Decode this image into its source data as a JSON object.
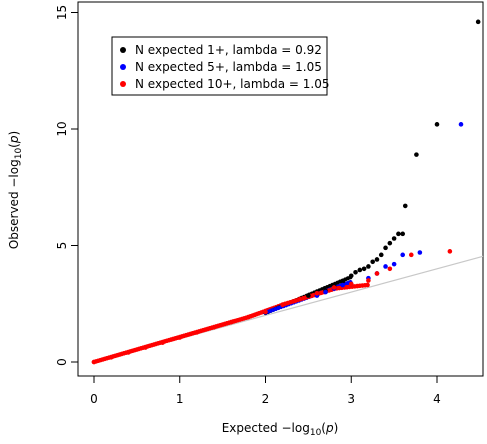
{
  "chart_data": {
    "type": "scatter",
    "title": "",
    "xlabel": {
      "prefix": "Expected  −log",
      "sub": "10",
      "mid": "(",
      "var": "p",
      "suffix": ")"
    },
    "ylabel": {
      "prefix": "Observed  −log",
      "sub": "10",
      "mid": "(",
      "var": "p",
      "suffix": ")"
    },
    "xlim": [
      0,
      4.5
    ],
    "ylim": [
      0,
      15
    ],
    "xticks": [
      "0",
      "1",
      "2",
      "3",
      "4"
    ],
    "yticks": [
      "0",
      "5",
      "10",
      "15"
    ],
    "grid": false,
    "legend_position": "top-left",
    "reference_line": {
      "color": "#c8c8c8",
      "from": [
        0,
        0
      ],
      "to": [
        4.5,
        4.5
      ]
    },
    "series": [
      {
        "name": "N expected 1+, lambda = 0.92",
        "color": "#000000",
        "points": [
          [
            2.4,
            2.7
          ],
          [
            2.5,
            2.85
          ],
          [
            2.6,
            2.95
          ],
          [
            2.7,
            3.05
          ],
          [
            2.8,
            3.25
          ],
          [
            2.9,
            3.45
          ],
          [
            3.0,
            3.7
          ],
          [
            3.05,
            3.85
          ],
          [
            3.1,
            3.95
          ],
          [
            3.15,
            4.0
          ],
          [
            3.2,
            4.1
          ],
          [
            3.25,
            4.3
          ],
          [
            3.3,
            4.4
          ],
          [
            3.35,
            4.6
          ],
          [
            3.4,
            4.9
          ],
          [
            3.45,
            5.1
          ],
          [
            3.5,
            5.3
          ],
          [
            3.55,
            5.5
          ],
          [
            3.6,
            5.5
          ],
          [
            3.63,
            6.7
          ],
          [
            3.76,
            8.9
          ],
          [
            4.0,
            10.2
          ],
          [
            4.48,
            14.6
          ]
        ]
      },
      {
        "name": "N expected 5+, lambda = 1.05",
        "color": "#0000ff",
        "points": [
          [
            2.6,
            2.85
          ],
          [
            2.7,
            3.0
          ],
          [
            2.8,
            3.15
          ],
          [
            2.9,
            3.3
          ],
          [
            3.0,
            3.35
          ],
          [
            3.2,
            3.6
          ],
          [
            3.3,
            3.8
          ],
          [
            3.4,
            4.1
          ],
          [
            3.5,
            4.2
          ],
          [
            3.6,
            4.6
          ],
          [
            3.8,
            4.7
          ],
          [
            4.28,
            10.2
          ]
        ]
      },
      {
        "name": "N expected 10+, lambda = 1.05",
        "color": "#ff0000",
        "points": [
          [
            0,
            0
          ],
          [
            0.2,
            0.2
          ],
          [
            0.4,
            0.41
          ],
          [
            0.6,
            0.62
          ],
          [
            0.8,
            0.83
          ],
          [
            1.0,
            1.05
          ],
          [
            1.2,
            1.27
          ],
          [
            1.4,
            1.49
          ],
          [
            1.6,
            1.71
          ],
          [
            1.8,
            1.93
          ],
          [
            2.0,
            2.15
          ],
          [
            2.2,
            2.45
          ],
          [
            2.4,
            2.7
          ],
          [
            2.6,
            2.95
          ],
          [
            2.8,
            3.2
          ],
          [
            3.0,
            3.35
          ],
          [
            3.2,
            3.5
          ],
          [
            3.3,
            3.8
          ],
          [
            3.45,
            4.0
          ],
          [
            3.7,
            4.6
          ],
          [
            4.15,
            4.75
          ]
        ]
      }
    ]
  }
}
